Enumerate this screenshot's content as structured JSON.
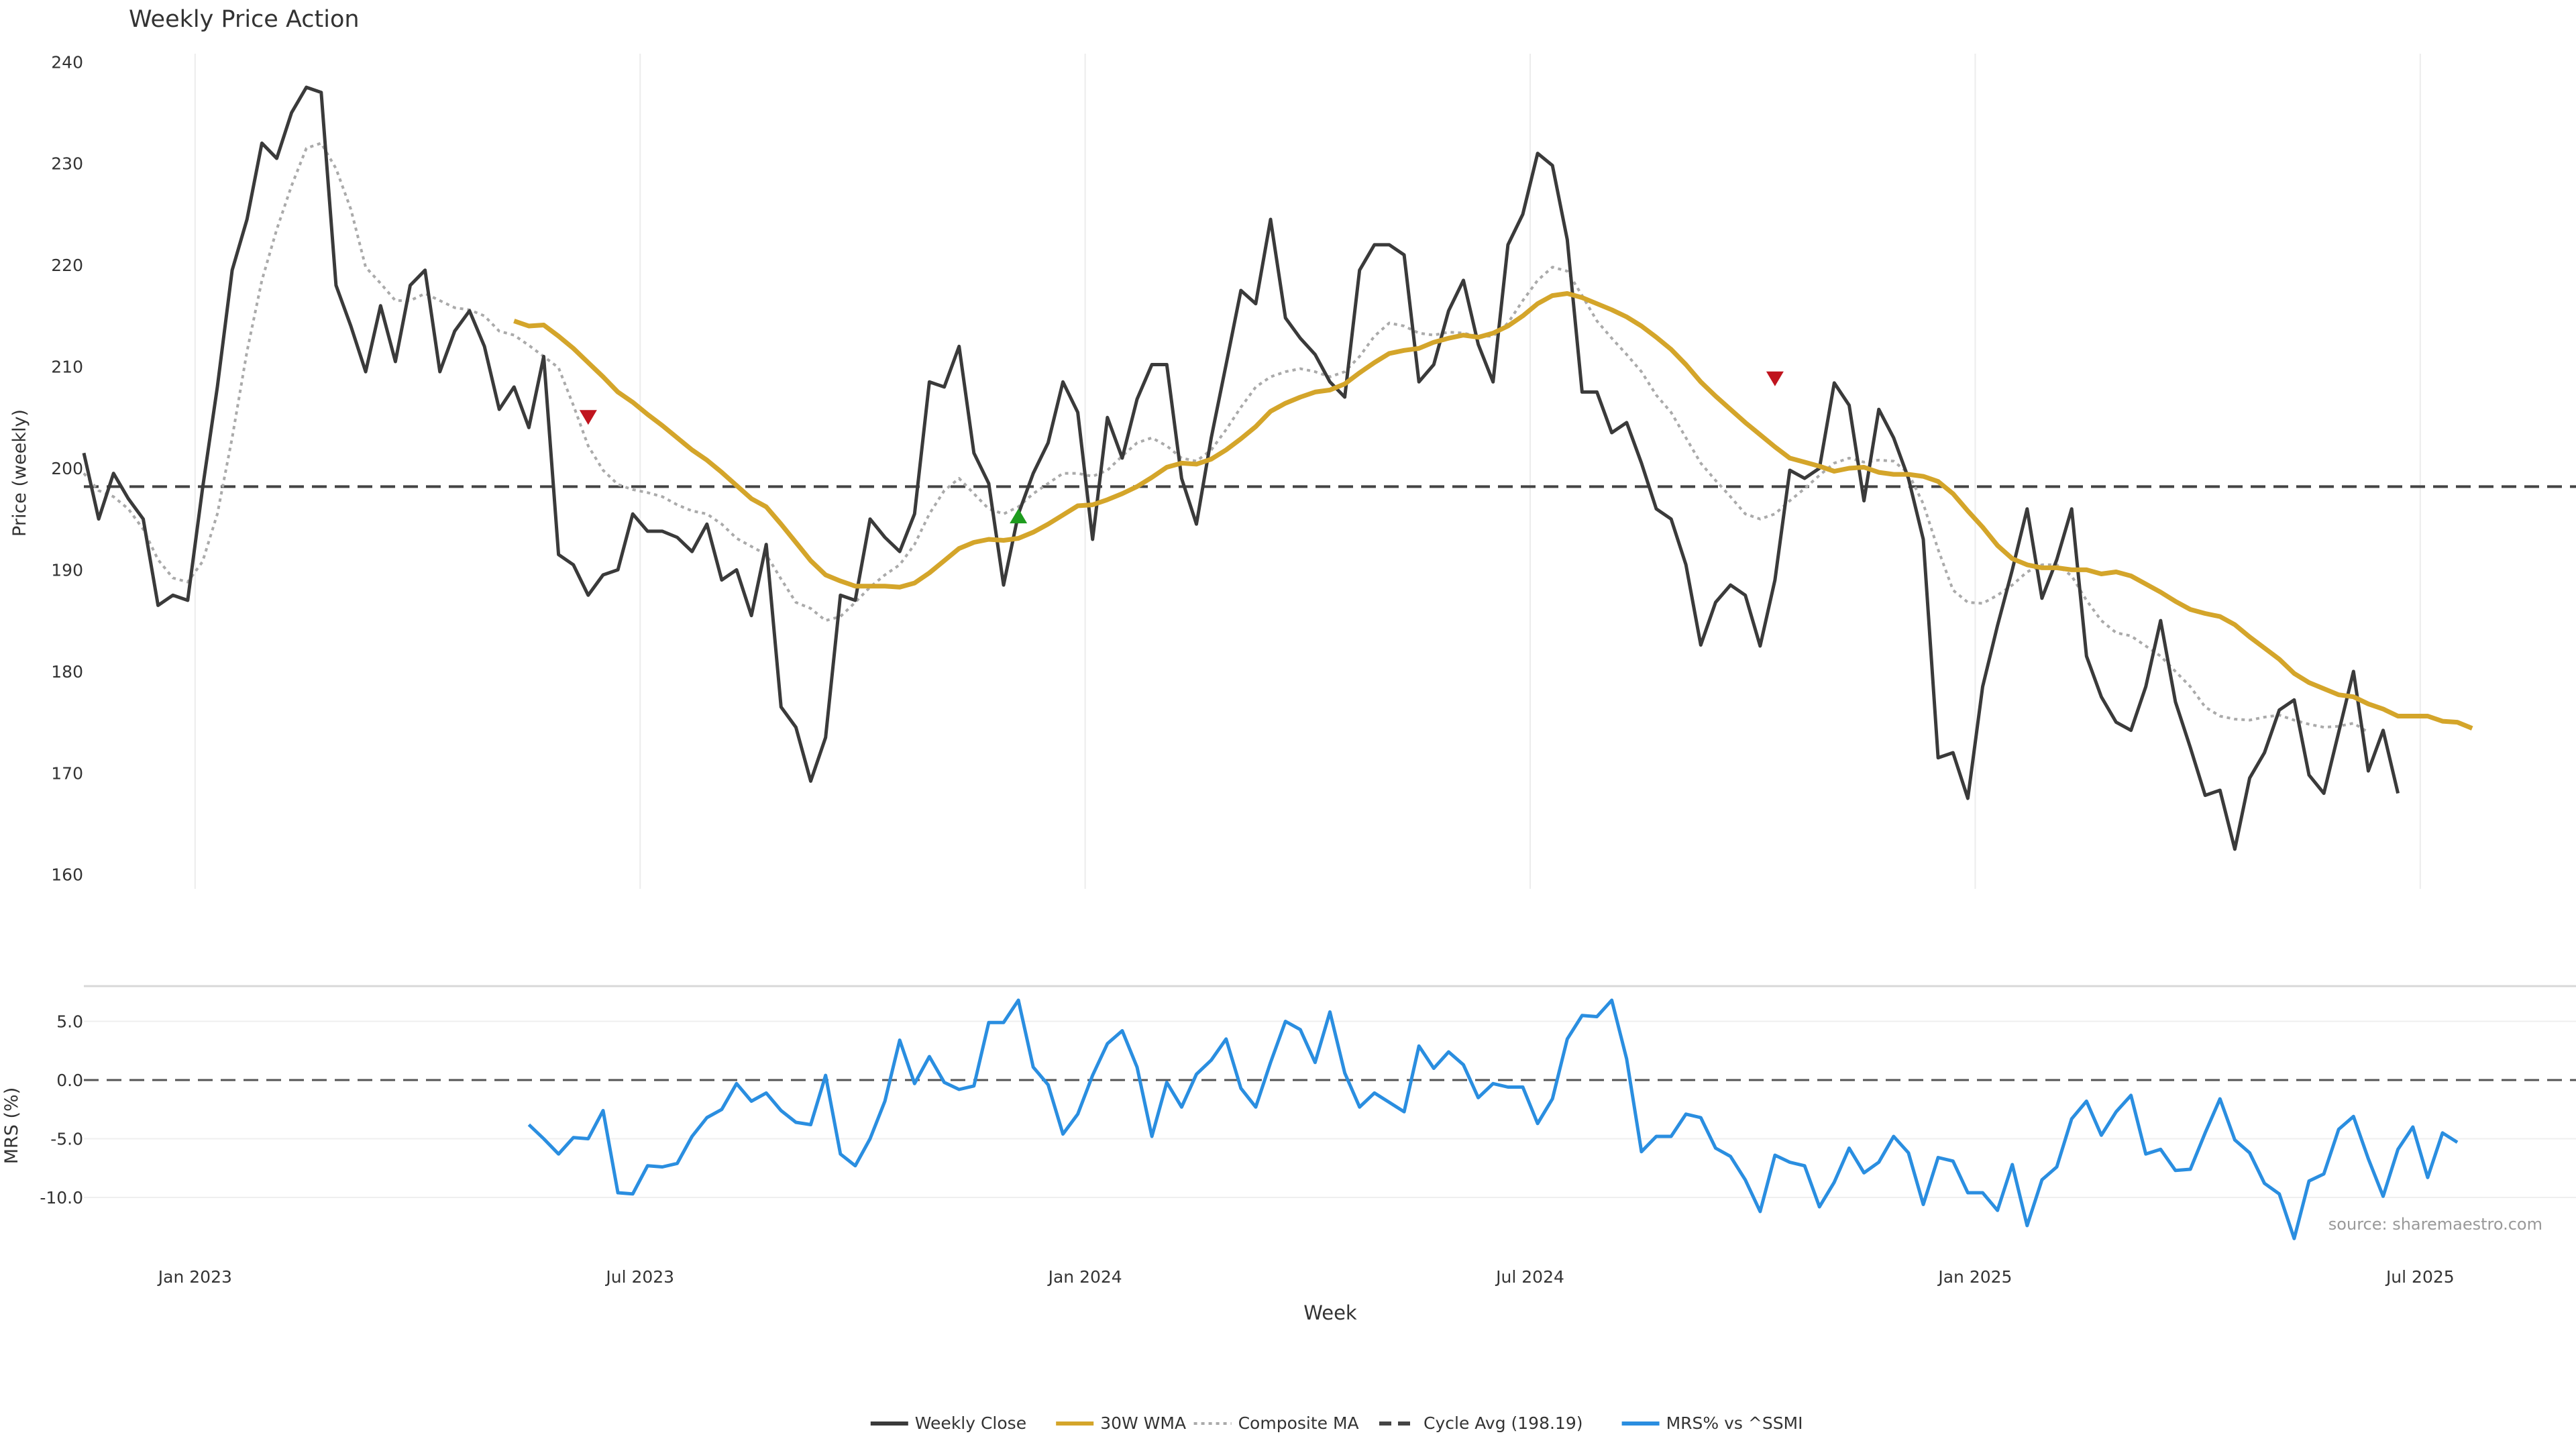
{
  "title": "Weekly Price Action",
  "source": "source: sharemaestro.com",
  "colors": {
    "close": "#3a3a3a",
    "wma": "#d4a52a",
    "composite": "#aaaaaa",
    "cycle": "#444444",
    "mrs": "#2a8ee0",
    "sell": "#c0141e",
    "buy": "#1e9c1e",
    "grid": "#ececec"
  },
  "chart_data": {
    "type": "line",
    "title": "Weekly Price Action",
    "xlabel": "Week",
    "x_ticks": [
      "Jan 2023",
      "Jul 2023",
      "Jan 2024",
      "Jul 2024",
      "Jan 2025",
      "Jul 2025"
    ],
    "tick_indices": [
      7.5,
      37.5,
      67.5,
      97.5,
      127.5,
      157.5
    ],
    "price_panel": {
      "ylabel": "Price (weekly)",
      "ylim": [
        158,
        242
      ],
      "yticks": [
        160,
        170,
        180,
        190,
        200,
        210,
        220,
        230,
        240
      ],
      "cycle_avg": 198.19,
      "series": [
        {
          "name": "Weekly Close",
          "start_index": 0,
          "values": [
            201.5,
            195,
            199.5,
            197,
            195,
            186.5,
            187.5,
            187,
            198,
            208,
            219.5,
            224.5,
            232,
            230.5,
            235,
            237.5,
            237,
            218,
            214,
            209.5,
            216,
            210.5,
            218,
            219.5,
            209.5,
            213.5,
            215.5,
            212,
            205.8,
            208,
            204,
            211,
            191.5,
            190.5,
            187.5,
            189.5,
            190,
            195.5,
            193.8,
            193.8,
            193.2,
            191.8,
            194.5,
            189,
            190,
            185.5,
            192.5,
            176.5,
            174.5,
            169.2,
            173.5,
            187.5,
            187,
            195,
            193.2,
            191.8,
            195.5,
            208.5,
            208,
            212,
            201.5,
            198.5,
            188.5,
            195.5,
            199.5,
            202.5,
            208.5,
            205.5,
            193,
            205,
            201,
            206.8,
            210.2,
            210.2,
            199,
            194.5,
            203,
            210.2,
            217.5,
            216.2,
            224.5,
            214.8,
            212.8,
            211.2,
            208.5,
            207,
            219.5,
            222,
            222,
            221,
            208.5,
            210.2,
            215.5,
            218.5,
            212.2,
            208.5,
            222,
            225,
            231,
            229.8,
            222.5,
            207.5,
            207.5,
            203.5,
            204.5,
            200.5,
            196,
            195,
            190.5,
            182.6,
            186.8,
            188.5,
            187.5,
            182.5,
            189,
            199.8,
            199,
            200,
            208.4,
            206.2,
            196.8,
            205.8,
            203,
            199,
            193,
            171.5,
            172,
            167.5,
            178.5,
            184.5,
            190,
            196,
            187.2,
            191,
            196,
            181.5,
            177.5,
            175,
            174.2,
            178.5,
            185,
            177,
            172.5,
            167.8,
            168.3,
            162.5,
            169.5,
            172,
            176.2,
            177.2,
            169.8,
            168,
            174,
            180,
            170.2,
            174.2,
            168
          ]
        },
        {
          "name": "30W WMA",
          "start_index": 29,
          "values": [
            214.5,
            214,
            214.1,
            213,
            211.8,
            210.4,
            209,
            207.5,
            206.5,
            205.3,
            204.2,
            203,
            201.8,
            200.8,
            199.6,
            198.3,
            197,
            196.2,
            194.5,
            192.7,
            190.9,
            189.5,
            188.9,
            188.4,
            188.4,
            188.4,
            188.3,
            188.7,
            189.7,
            190.9,
            192.1,
            192.7,
            193,
            192.9,
            193.1,
            193.7,
            194.5,
            195.4,
            196.3,
            196.4,
            196.9,
            197.5,
            198.2,
            199.1,
            200.1,
            200.5,
            200.4,
            200.9,
            201.8,
            202.9,
            204.1,
            205.6,
            206.4,
            207,
            207.5,
            207.7,
            208.3,
            209.4,
            210.4,
            211.3,
            211.6,
            211.8,
            212.4,
            212.8,
            213.1,
            212.9,
            213.3,
            214,
            215,
            216.2,
            217,
            217.2,
            216.8,
            216.2,
            215.6,
            214.9,
            214,
            212.9,
            211.7,
            210.2,
            208.5,
            207.1,
            205.8,
            204.5,
            203.3,
            202.1,
            201,
            200.6,
            200.2,
            199.7,
            200,
            200.1,
            199.6,
            199.4,
            199.4,
            199.2,
            198.7,
            197.5,
            195.8,
            194.2,
            192.4,
            191.1,
            190.5,
            190.2,
            190.2,
            190,
            190,
            189.6,
            189.8,
            189.4,
            188.6,
            187.8,
            186.9,
            186.1,
            185.7,
            185.4,
            184.6,
            183.4,
            182.3,
            181.2,
            179.8,
            178.9,
            178.3,
            177.7,
            177.5,
            176.8,
            176.3,
            175.6,
            175.6,
            175.6,
            175.1,
            175,
            174.4
          ]
        },
        {
          "name": "Composite MA",
          "start_index": 0,
          "values": [
            199.5,
            197.8,
            197.2,
            196,
            194,
            191,
            189.2,
            188.8,
            190.8,
            195.5,
            203,
            211.5,
            218.5,
            223.5,
            227.8,
            231.5,
            232,
            229.5,
            225.5,
            219.8,
            218.2,
            216.5,
            216.5,
            217.2,
            216.5,
            215.8,
            215.6,
            215,
            213.5,
            213.1,
            212.1,
            211,
            209.9,
            206.2,
            202.2,
            199.8,
            198.4,
            197.9,
            197.6,
            197.2,
            196.4,
            195.8,
            195.5,
            194.5,
            193.1,
            192.3,
            191.5,
            189.1,
            186.8,
            186.2,
            185,
            185.4,
            186.8,
            188.3,
            189.5,
            190.5,
            192.5,
            195.5,
            197.8,
            199,
            197.5,
            196,
            195.5,
            196.2,
            197.5,
            198.5,
            199.5,
            199.5,
            199.2,
            199.8,
            201.2,
            202.5,
            203,
            202.2,
            201,
            200.7,
            201.8,
            203.8,
            206,
            208,
            209,
            209.5,
            209.8,
            209.5,
            209,
            209.5,
            211,
            213,
            214.3,
            214,
            213.3,
            213.1,
            213.4,
            213.3,
            213,
            213,
            214.3,
            216.5,
            218.5,
            219.8,
            219.4,
            217,
            214.5,
            212.8,
            211.2,
            209.5,
            207.2,
            205.5,
            203,
            200.5,
            198.8,
            197.2,
            195.5,
            195,
            195.5,
            196.8,
            198,
            199.3,
            200.5,
            201,
            200.6,
            200.8,
            200.7,
            199.5,
            196.5,
            192,
            188,
            186.8,
            186.7,
            187.5,
            188.5,
            189.8,
            190.5,
            190.5,
            189.4,
            187,
            185,
            183.8,
            183.5,
            182.5,
            181.5,
            180,
            178.5,
            176.5,
            175.6,
            175.3,
            175.2,
            175.5,
            175.7,
            175.2,
            174.8,
            174.5,
            174.6,
            174.9,
            174
          ]
        }
      ],
      "signals": [
        {
          "type": "sell",
          "index": 34,
          "value": 205
        },
        {
          "type": "buy",
          "index": 63,
          "value": 195.3
        },
        {
          "type": "sell",
          "index": 114,
          "value": 208.8
        }
      ],
      "legend": [
        {
          "name": "Weekly Close",
          "style": "solid",
          "color": "#3a3a3a"
        },
        {
          "name": "30W WMA",
          "style": "solid",
          "color": "#d4a52a"
        },
        {
          "name": "Composite MA",
          "style": "dotted",
          "color": "#aaaaaa"
        },
        {
          "name": "Cycle Avg (198.19)",
          "style": "dashed",
          "color": "#444444"
        },
        {
          "name": "MRS% vs ^SSMI",
          "style": "solid",
          "color": "#2a8ee0"
        }
      ]
    },
    "mrs_panel": {
      "ylabel": "MRS (%)",
      "ylim": [
        -14,
        8
      ],
      "yticks": [
        -10.0,
        -5.0,
        0.0,
        5.0
      ],
      "ytick_labels": [
        "-10.0",
        "-5.0",
        "0.0",
        "5.0"
      ],
      "series": {
        "name": "MRS% vs ^SSMI",
        "start_index": 30,
        "values": [
          -3.8,
          -5,
          -6.3,
          -4.9,
          -5,
          -2.6,
          -9.6,
          -9.7,
          -7.3,
          -7.4,
          -7.1,
          -4.8,
          -3.2,
          -2.5,
          -0.3,
          -1.8,
          -1.1,
          -2.6,
          -3.6,
          -3.8,
          0.4,
          -6.3,
          -7.3,
          -5,
          -1.8,
          3.4,
          -0.3,
          2,
          -0.2,
          -0.8,
          -0.5,
          4.9,
          4.9,
          6.8,
          1.1,
          -0.4,
          -4.6,
          -2.9,
          0.4,
          3.1,
          4.2,
          1.1,
          -4.8,
          -0.2,
          -2.3,
          0.5,
          1.7,
          3.5,
          -0.7,
          -2.3,
          1.5,
          5,
          4.3,
          1.5,
          5.8,
          0.6,
          -2.3,
          -1.1,
          -1.9,
          -2.7,
          2.9,
          1,
          2.4,
          1.3,
          -1.5,
          -0.3,
          -0.6,
          -0.6,
          -3.7,
          -1.6,
          3.5,
          5.5,
          5.4,
          6.8,
          1.8,
          -6.1,
          -4.8,
          -4.8,
          -2.9,
          -3.2,
          -5.8,
          -6.5,
          -8.5,
          -11.2,
          -6.4,
          -7,
          -7.3,
          -10.8,
          -8.7,
          -5.8,
          -7.9,
          -7,
          -4.8,
          -6.2,
          -10.6,
          -6.6,
          -6.9,
          -9.6,
          -9.6,
          -11.1,
          -7.2,
          -12.4,
          -8.5,
          -7.4,
          -3.3,
          -1.8,
          -4.7,
          -2.7,
          -1.3,
          -6.3,
          -5.9,
          -7.7,
          -7.6,
          -4.5,
          -1.6,
          -5.1,
          -6.2,
          -8.8,
          -9.7,
          -13.5,
          -8.6,
          -8,
          -4.2,
          -3.1,
          -6.7,
          -9.9,
          -5.9,
          -4,
          -8.3,
          -4.5,
          -5.3
        ]
      }
    }
  }
}
